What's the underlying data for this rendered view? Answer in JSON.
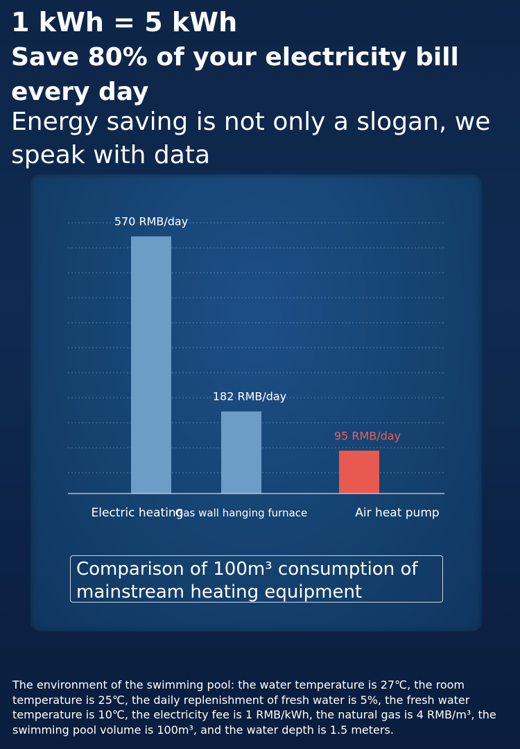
{
  "headline": {
    "line1": "1 kWh = 5 kWh",
    "line2": "Save 80% of your electricity bill every day",
    "line3": "Energy saving is not only a slogan, we speak with data"
  },
  "chart_data": {
    "type": "bar",
    "categories": [
      "Electric heating",
      "Gas wall hanging furnace",
      "Air heat pump"
    ],
    "values": [
      570,
      182,
      95
    ],
    "value_labels": [
      "570 RMB/day",
      "182 RMB/day",
      "95 RMB/day"
    ],
    "bar_colors": [
      "#6d9dc6",
      "#6d9dc6",
      "#e85a4f"
    ],
    "label_colors": [
      "#ffffff",
      "#ffffff",
      "#e8605a"
    ],
    "grid": true,
    "ylim": [
      0,
      600
    ]
  },
  "caption": "Comparison of 100m³ consumption of mainstream heating equipment",
  "footnote": "The environment of the swimming pool: the water temperature is 27℃, the room temperature is 25℃, the daily replenishment of fresh water is 5%, the fresh water temperature is 10℃, the electricity fee is 1 RMB/kWh, the natural gas is 4 RMB/m³, the swimming pool volume is 100m³, and the water depth is 1.5 meters.",
  "colors": {
    "background": "#0d2547",
    "panel": "#15426f",
    "bar": "#6d9dc6",
    "highlight": "#e85a4f"
  }
}
